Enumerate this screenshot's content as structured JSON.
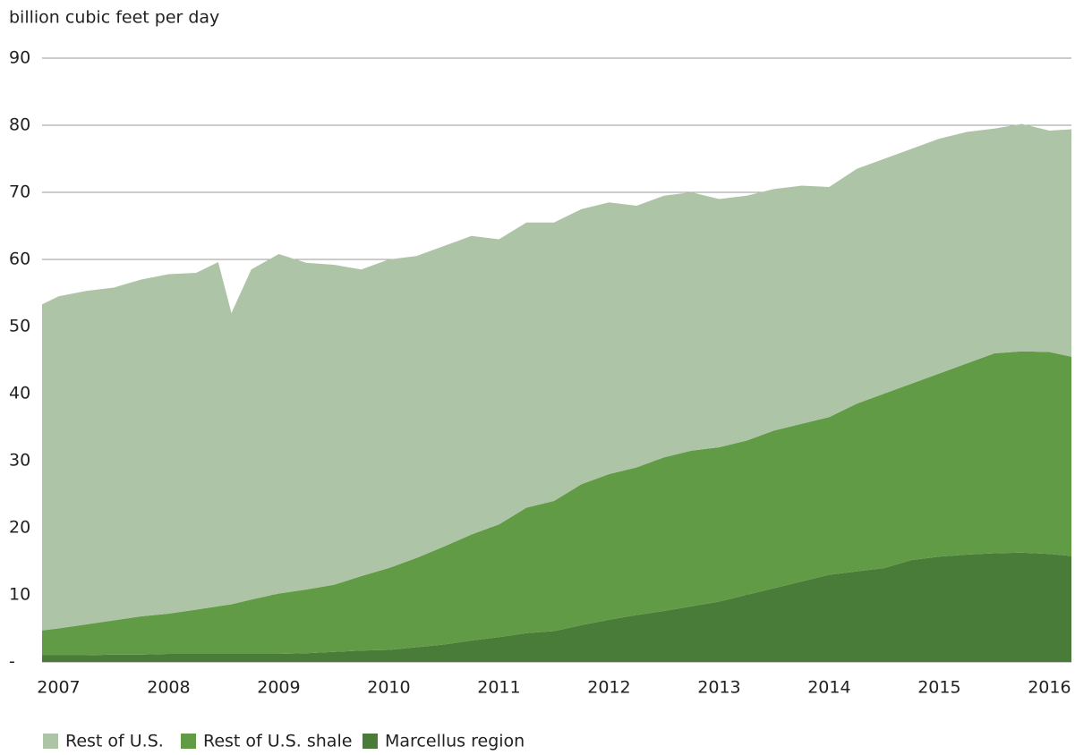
{
  "chart_data": {
    "type": "stacked_area",
    "y_axis_label": "billion cubic feet per day",
    "x": [
      2006.85,
      2007.0,
      2007.25,
      2007.5,
      2007.75,
      2008.0,
      2008.25,
      2008.45,
      2008.57,
      2008.75,
      2009.0,
      2009.25,
      2009.5,
      2009.75,
      2010.0,
      2010.25,
      2010.5,
      2010.75,
      2011.0,
      2011.25,
      2011.5,
      2011.75,
      2012.0,
      2012.25,
      2012.5,
      2012.75,
      2013.0,
      2013.25,
      2013.5,
      2013.75,
      2014.0,
      2014.25,
      2014.5,
      2014.75,
      2015.0,
      2015.25,
      2015.5,
      2015.75,
      2016.0,
      2016.2
    ],
    "series": [
      {
        "name": "Rest of U.S.",
        "color": "#adc5a6",
        "values": [
          48.6,
          49.5,
          49.7,
          49.6,
          50.2,
          50.6,
          50.2,
          51.3,
          43.4,
          49.2,
          50.6,
          48.7,
          47.7,
          45.7,
          46.0,
          45.0,
          44.8,
          44.5,
          42.5,
          42.5,
          41.5,
          41.0,
          40.5,
          39.0,
          39.0,
          38.5,
          37.0,
          36.5,
          36.0,
          35.5,
          34.3,
          35.0,
          35.0,
          35.0,
          35.0,
          34.5,
          33.5,
          33.9,
          33.0,
          33.9
        ]
      },
      {
        "name": "Rest of U.S. shale",
        "color": "#629b45",
        "values": [
          3.7,
          4.0,
          4.6,
          5.1,
          5.7,
          6.0,
          6.6,
          7.1,
          7.4,
          8.1,
          9.0,
          9.5,
          10.0,
          11.1,
          12.2,
          13.3,
          14.6,
          15.8,
          16.8,
          18.7,
          19.4,
          21.0,
          21.7,
          22.0,
          22.9,
          23.2,
          23.0,
          23.0,
          23.5,
          23.5,
          23.5,
          25.0,
          26.0,
          26.3,
          27.3,
          28.5,
          29.8,
          30.0,
          30.1,
          29.7
        ]
      },
      {
        "name": "Marcellus region",
        "color": "#497c38",
        "values": [
          1.0,
          1.0,
          1.0,
          1.1,
          1.1,
          1.2,
          1.2,
          1.2,
          1.2,
          1.2,
          1.2,
          1.3,
          1.5,
          1.7,
          1.8,
          2.2,
          2.6,
          3.2,
          3.7,
          4.3,
          4.6,
          5.5,
          6.3,
          7.0,
          7.6,
          8.3,
          9.0,
          10.0,
          11.0,
          12.0,
          13.0,
          13.5,
          14.0,
          15.2,
          15.7,
          16.0,
          16.2,
          16.3,
          16.1,
          15.8
        ]
      }
    ],
    "xlim": [
      2006.85,
      2016.2
    ],
    "xticks": [
      2007,
      2008,
      2009,
      2010,
      2011,
      2012,
      2013,
      2014,
      2015,
      2016
    ],
    "ylim": [
      0,
      90
    ],
    "yticks": [
      {
        "value": 0,
        "label": "-"
      },
      10,
      20,
      30,
      40,
      50,
      60,
      70,
      80,
      90
    ],
    "grid": true
  }
}
